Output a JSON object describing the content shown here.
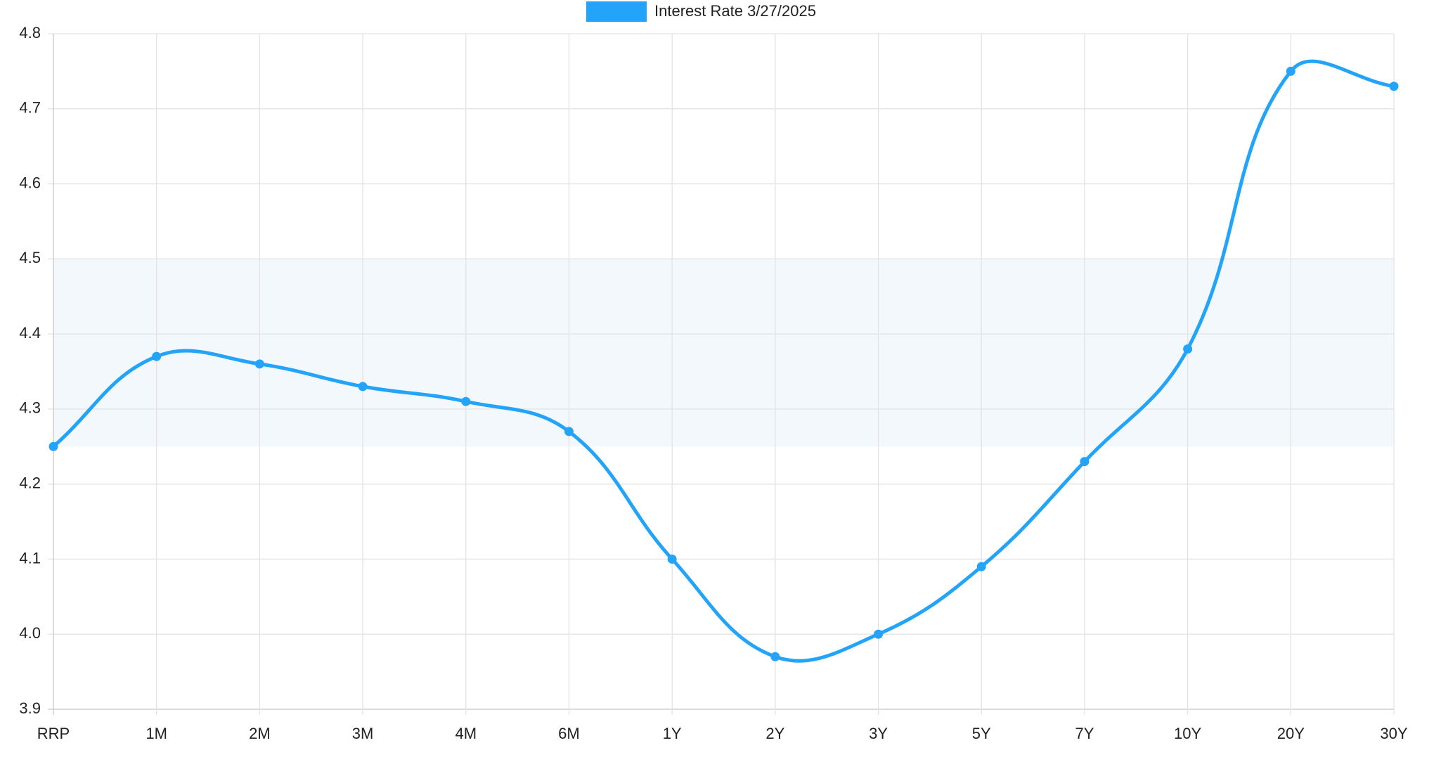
{
  "chart_data": {
    "type": "line",
    "categories": [
      "RRP",
      "1M",
      "2M",
      "3M",
      "4M",
      "6M",
      "1Y",
      "2Y",
      "3Y",
      "5Y",
      "7Y",
      "10Y",
      "20Y",
      "30Y"
    ],
    "series": [
      {
        "name": "Interest Rate 3/27/2025",
        "color": "#24a4f9",
        "values": [
          4.25,
          4.37,
          4.36,
          4.33,
          4.31,
          4.27,
          4.1,
          3.97,
          4.0,
          4.09,
          4.23,
          4.38,
          4.75,
          4.73
        ]
      }
    ],
    "ylim": [
      3.9,
      4.8
    ],
    "yticks": [
      {
        "value": 3.9,
        "label": "3.9"
      },
      {
        "value": 4.0,
        "label": "4.0"
      },
      {
        "value": 4.1,
        "label": "4.1"
      },
      {
        "value": 4.2,
        "label": "4.2"
      },
      {
        "value": 4.3,
        "label": "4.3"
      },
      {
        "value": 4.4,
        "label": "4.4"
      },
      {
        "value": 4.5,
        "label": "4.5"
      },
      {
        "value": 4.6,
        "label": "4.6"
      },
      {
        "value": 4.7,
        "label": "4.7"
      },
      {
        "value": 4.8,
        "label": "4.8"
      }
    ],
    "grid": true,
    "legend": "top",
    "highlight_band": {
      "from": 4.25,
      "to": 4.5,
      "color": "#f3f8fd"
    }
  }
}
